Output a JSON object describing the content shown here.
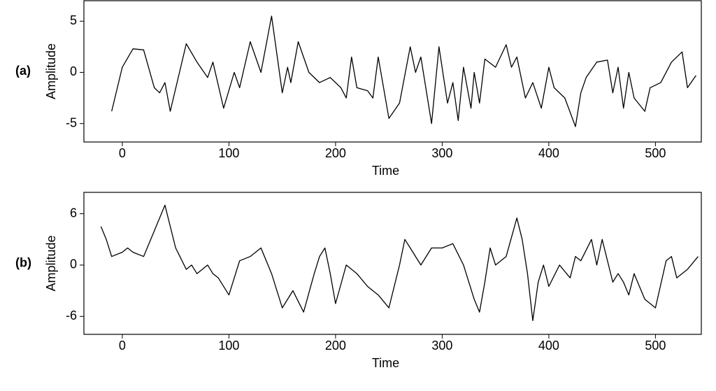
{
  "chart_data": [
    {
      "type": "line",
      "label": "(a)",
      "xlabel": "Time",
      "ylabel": "Amplitude",
      "xlim": [
        -36,
        543
      ],
      "xticks": [
        0,
        100,
        200,
        300,
        400,
        500
      ],
      "ylim": [
        -6.8,
        7.0
      ],
      "yticks": [
        -5,
        0,
        5
      ],
      "series": [
        {
          "color": "#000000",
          "x": [
            -10,
            0,
            10,
            20,
            30,
            35,
            40,
            45,
            60,
            70,
            80,
            85,
            95,
            105,
            110,
            120,
            130,
            140,
            150,
            155,
            158,
            165,
            175,
            185,
            195,
            205,
            210,
            215,
            220,
            230,
            235,
            240,
            250,
            260,
            270,
            275,
            280,
            290,
            297,
            305,
            310,
            315,
            320,
            327,
            330,
            335,
            340,
            350,
            360,
            365,
            370,
            378,
            385,
            393,
            400,
            405,
            415,
            425,
            430,
            435,
            445,
            455,
            460,
            465,
            470,
            475,
            480,
            490,
            495,
            505,
            515,
            525,
            530,
            538
          ],
          "values": [
            -3.8,
            0.5,
            2.3,
            2.2,
            -1.5,
            -2,
            -1,
            -3.8,
            2.8,
            1,
            -0.5,
            1,
            -3.5,
            0,
            -1.5,
            3,
            0,
            5.5,
            -2,
            0.5,
            -1,
            3,
            0,
            -1,
            -0.5,
            -1.5,
            -2.5,
            1.5,
            -1.5,
            -1.8,
            -2.5,
            1.5,
            -4.5,
            -3,
            2.5,
            0,
            1.5,
            -5,
            2.5,
            -3,
            -1,
            -4.7,
            0.5,
            -3.5,
            0,
            -3,
            1.3,
            0.5,
            2.7,
            0.5,
            1.5,
            -2.5,
            -1,
            -3.5,
            0.5,
            -1.5,
            -2.5,
            -5.3,
            -2,
            -0.5,
            1,
            1.2,
            -2,
            0.5,
            -3.5,
            0,
            -2.5,
            -3.8,
            -1.5,
            -1,
            1,
            2,
            -1.5,
            -0.3
          ]
        }
      ]
    },
    {
      "type": "line",
      "label": "(b)",
      "xlabel": "Time",
      "ylabel": "Amplitude",
      "xlim": [
        -36,
        543
      ],
      "xticks": [
        0,
        100,
        200,
        300,
        400,
        500
      ],
      "ylim": [
        -8.1,
        8.5
      ],
      "yticks": [
        -6,
        0,
        6
      ],
      "series": [
        {
          "color": "#000000",
          "x": [
            -20,
            -15,
            -10,
            0,
            5,
            10,
            20,
            30,
            40,
            50,
            60,
            65,
            70,
            80,
            85,
            90,
            100,
            110,
            120,
            130,
            140,
            150,
            160,
            170,
            180,
            185,
            190,
            195,
            200,
            210,
            220,
            230,
            240,
            250,
            260,
            265,
            270,
            280,
            290,
            300,
            310,
            320,
            330,
            335,
            340,
            345,
            350,
            360,
            370,
            375,
            380,
            385,
            390,
            395,
            400,
            410,
            420,
            425,
            430,
            440,
            445,
            450,
            460,
            465,
            470,
            475,
            480,
            490,
            500,
            510,
            515,
            520,
            530,
            540
          ],
          "values": [
            4.5,
            3,
            1,
            1.5,
            2,
            1.5,
            1,
            4,
            7,
            2,
            -0.5,
            0,
            -1,
            0,
            -1,
            -1.5,
            -3.5,
            0.5,
            1,
            2,
            -1,
            -5,
            -3,
            -5.5,
            -1,
            1,
            2,
            -1,
            -4.5,
            0,
            -1,
            -2.5,
            -3.5,
            -5,
            0,
            3,
            2,
            0,
            2,
            2,
            2.5,
            0,
            -4,
            -5.5,
            -2,
            2,
            0,
            1,
            5.5,
            3,
            -1,
            -6.5,
            -2,
            0,
            -2.5,
            0,
            -1.5,
            1,
            0.5,
            3,
            0,
            3,
            -2,
            -1,
            -2,
            -3.5,
            -1,
            -4,
            -5,
            0.5,
            1,
            -1.5,
            -0.5,
            1
          ]
        }
      ]
    }
  ]
}
